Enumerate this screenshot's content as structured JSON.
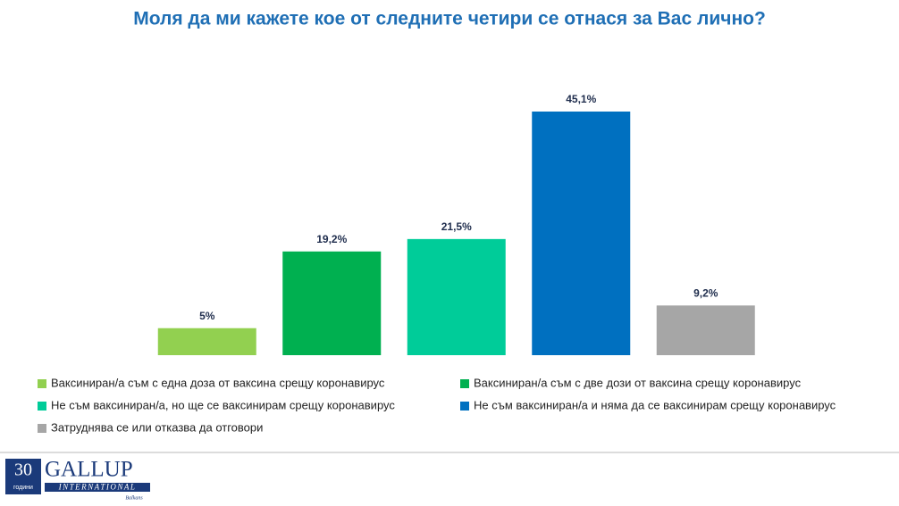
{
  "chart_data": {
    "type": "bar",
    "title": "Моля да ми кажете кое от следните четири се отнася за Вас лично?",
    "categories": [
      "Ваксиниран/а съм с една доза от ваксина срещу коронавирус",
      "Ваксиниран/а съм с две дози от ваксина срещу коронавирус",
      "Не съм ваксиниран/а, но ще се ваксинирам срещу коронавирус",
      "Не съм ваксиниран/а и няма да се ваксинирам срещу коронавирус",
      "Затруднява се или отказва да отговори"
    ],
    "values": [
      5,
      19.2,
      21.5,
      45.1,
      9.2
    ],
    "value_labels": [
      "5%",
      "19,2%",
      "21,5%",
      "45,1%",
      "9,2%"
    ],
    "colors": [
      "#92d050",
      "#00b050",
      "#00cc99",
      "#0070c0",
      "#a6a6a6"
    ]
  },
  "logo": {
    "number": "30",
    "years": "години",
    "brand": "GALLUP",
    "sub": "INTERNATIONAL",
    "region": "Balkans"
  }
}
